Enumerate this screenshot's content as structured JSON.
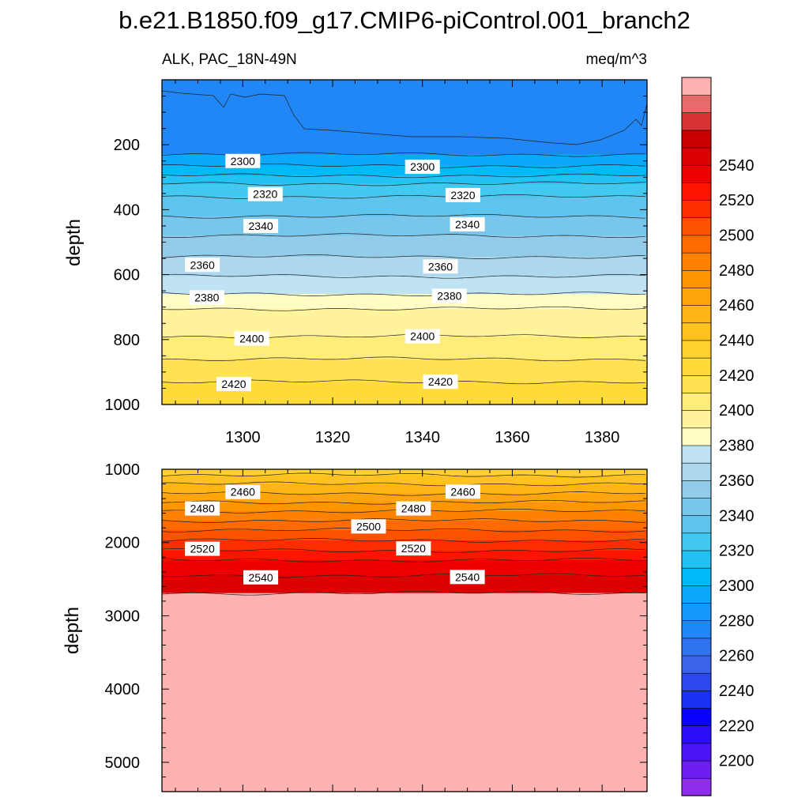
{
  "chart_data": {
    "type": "heatmap",
    "title": "b.e21.B1850.f09_g17.CMIP6-piControl.001_branch2",
    "variable_label": "ALK, PAC_18N-49N",
    "units_label": "meq/m^3",
    "ylabel": "depth",
    "x_range": [
      1282,
      1390
    ],
    "x_ticks": [
      1300,
      1320,
      1340,
      1360,
      1380
    ],
    "colorbar": {
      "levels": [
        2190,
        2200,
        2210,
        2220,
        2230,
        2240,
        2250,
        2260,
        2270,
        2280,
        2290,
        2300,
        2310,
        2320,
        2330,
        2340,
        2350,
        2360,
        2370,
        2380,
        2390,
        2400,
        2410,
        2420,
        2430,
        2440,
        2450,
        2460,
        2470,
        2480,
        2490,
        2500,
        2510,
        2520,
        2530,
        2540,
        2550,
        2560
      ],
      "colors": [
        "#8e2eea",
        "#6d1ff0",
        "#4a14f5",
        "#2a0ff8",
        "#0a00ff",
        "#1c2ff5",
        "#2e48ef",
        "#3a63ea",
        "#2f74ee",
        "#2186f6",
        "#1697fc",
        "#0aa9fb",
        "#00b9f7",
        "#22c3f2",
        "#43c8f0",
        "#5dc4ee",
        "#78c6ec",
        "#93cce9",
        "#acd7ee",
        "#bfe3f3",
        "#fffdc4",
        "#fff49b",
        "#ffec79",
        "#ffe253",
        "#ffdb3a",
        "#ffd02e",
        "#ffc21f",
        "#ffb516",
        "#ffa40c",
        "#ff9600",
        "#ff8100",
        "#ff6b00",
        "#ff5200",
        "#ff2e00",
        "#ff1400",
        "#ee0000",
        "#dd0000",
        "#c90000",
        "#d93333",
        "#e86b6b",
        "#ffb2b2"
      ],
      "tick_labels": [
        "2200",
        "2220",
        "2240",
        "2260",
        "2280",
        "2300",
        "2320",
        "2340",
        "2360",
        "2380",
        "2400",
        "2420",
        "2440",
        "2460",
        "2480",
        "2500",
        "2520",
        "2540"
      ]
    },
    "panels": [
      {
        "name": "upper",
        "y_range": [
          0,
          1000
        ],
        "y_ticks": [
          200,
          400,
          600,
          800,
          1000
        ],
        "surface_value": 2275,
        "contour_depths": {
          "2290": 230,
          "2300": 265,
          "2310": 295,
          "2320": 320,
          "2330": 360,
          "2340": 420,
          "2350": 480,
          "2360": 545,
          "2370": 605,
          "2380": 660,
          "2390": 705,
          "2400": 790,
          "2410": 860,
          "2420": 930
        },
        "bottom_value": 2425,
        "contour_labels": [
          {
            "text": "2300",
            "x": 1300,
            "depth": 250
          },
          {
            "text": "2300",
            "x": 1340,
            "depth": 268
          },
          {
            "text": "2320",
            "x": 1305,
            "depth": 352
          },
          {
            "text": "2320",
            "x": 1349,
            "depth": 355
          },
          {
            "text": "2340",
            "x": 1304,
            "depth": 450
          },
          {
            "text": "2340",
            "x": 1350,
            "depth": 445
          },
          {
            "text": "2360",
            "x": 1291,
            "depth": 570
          },
          {
            "text": "2360",
            "x": 1344,
            "depth": 575
          },
          {
            "text": "2380",
            "x": 1292,
            "depth": 670
          },
          {
            "text": "2380",
            "x": 1346,
            "depth": 665
          },
          {
            "text": "2400",
            "x": 1302,
            "depth": 797
          },
          {
            "text": "2400",
            "x": 1340,
            "depth": 790
          },
          {
            "text": "2420",
            "x": 1298,
            "depth": 937
          },
          {
            "text": "2420",
            "x": 1344,
            "depth": 930
          }
        ]
      },
      {
        "name": "lower",
        "y_range": [
          1000,
          5400
        ],
        "y_ticks": [
          1000,
          2000,
          3000,
          4000,
          5000
        ],
        "surface_value": 2432,
        "contour_depths": {
          "2440": 1080,
          "2450": 1200,
          "2460": 1330,
          "2470": 1450,
          "2480": 1570,
          "2490": 1700,
          "2500": 1830,
          "2510": 1970,
          "2520": 2110,
          "2530": 2240,
          "2540": 2450,
          "2550": 2690
        },
        "bottom_value": 2560,
        "contour_labels": [
          {
            "text": "2460",
            "x": 1300,
            "depth": 1310
          },
          {
            "text": "2460",
            "x": 1349,
            "depth": 1305
          },
          {
            "text": "2480",
            "x": 1291,
            "depth": 1535
          },
          {
            "text": "2480",
            "x": 1338,
            "depth": 1535
          },
          {
            "text": "2500",
            "x": 1328,
            "depth": 1780
          },
          {
            "text": "2520",
            "x": 1291,
            "depth": 2085
          },
          {
            "text": "2520",
            "x": 1338,
            "depth": 2080
          },
          {
            "text": "2540",
            "x": 1304,
            "depth": 2475
          },
          {
            "text": "2540",
            "x": 1350,
            "depth": 2470
          }
        ]
      }
    ]
  }
}
